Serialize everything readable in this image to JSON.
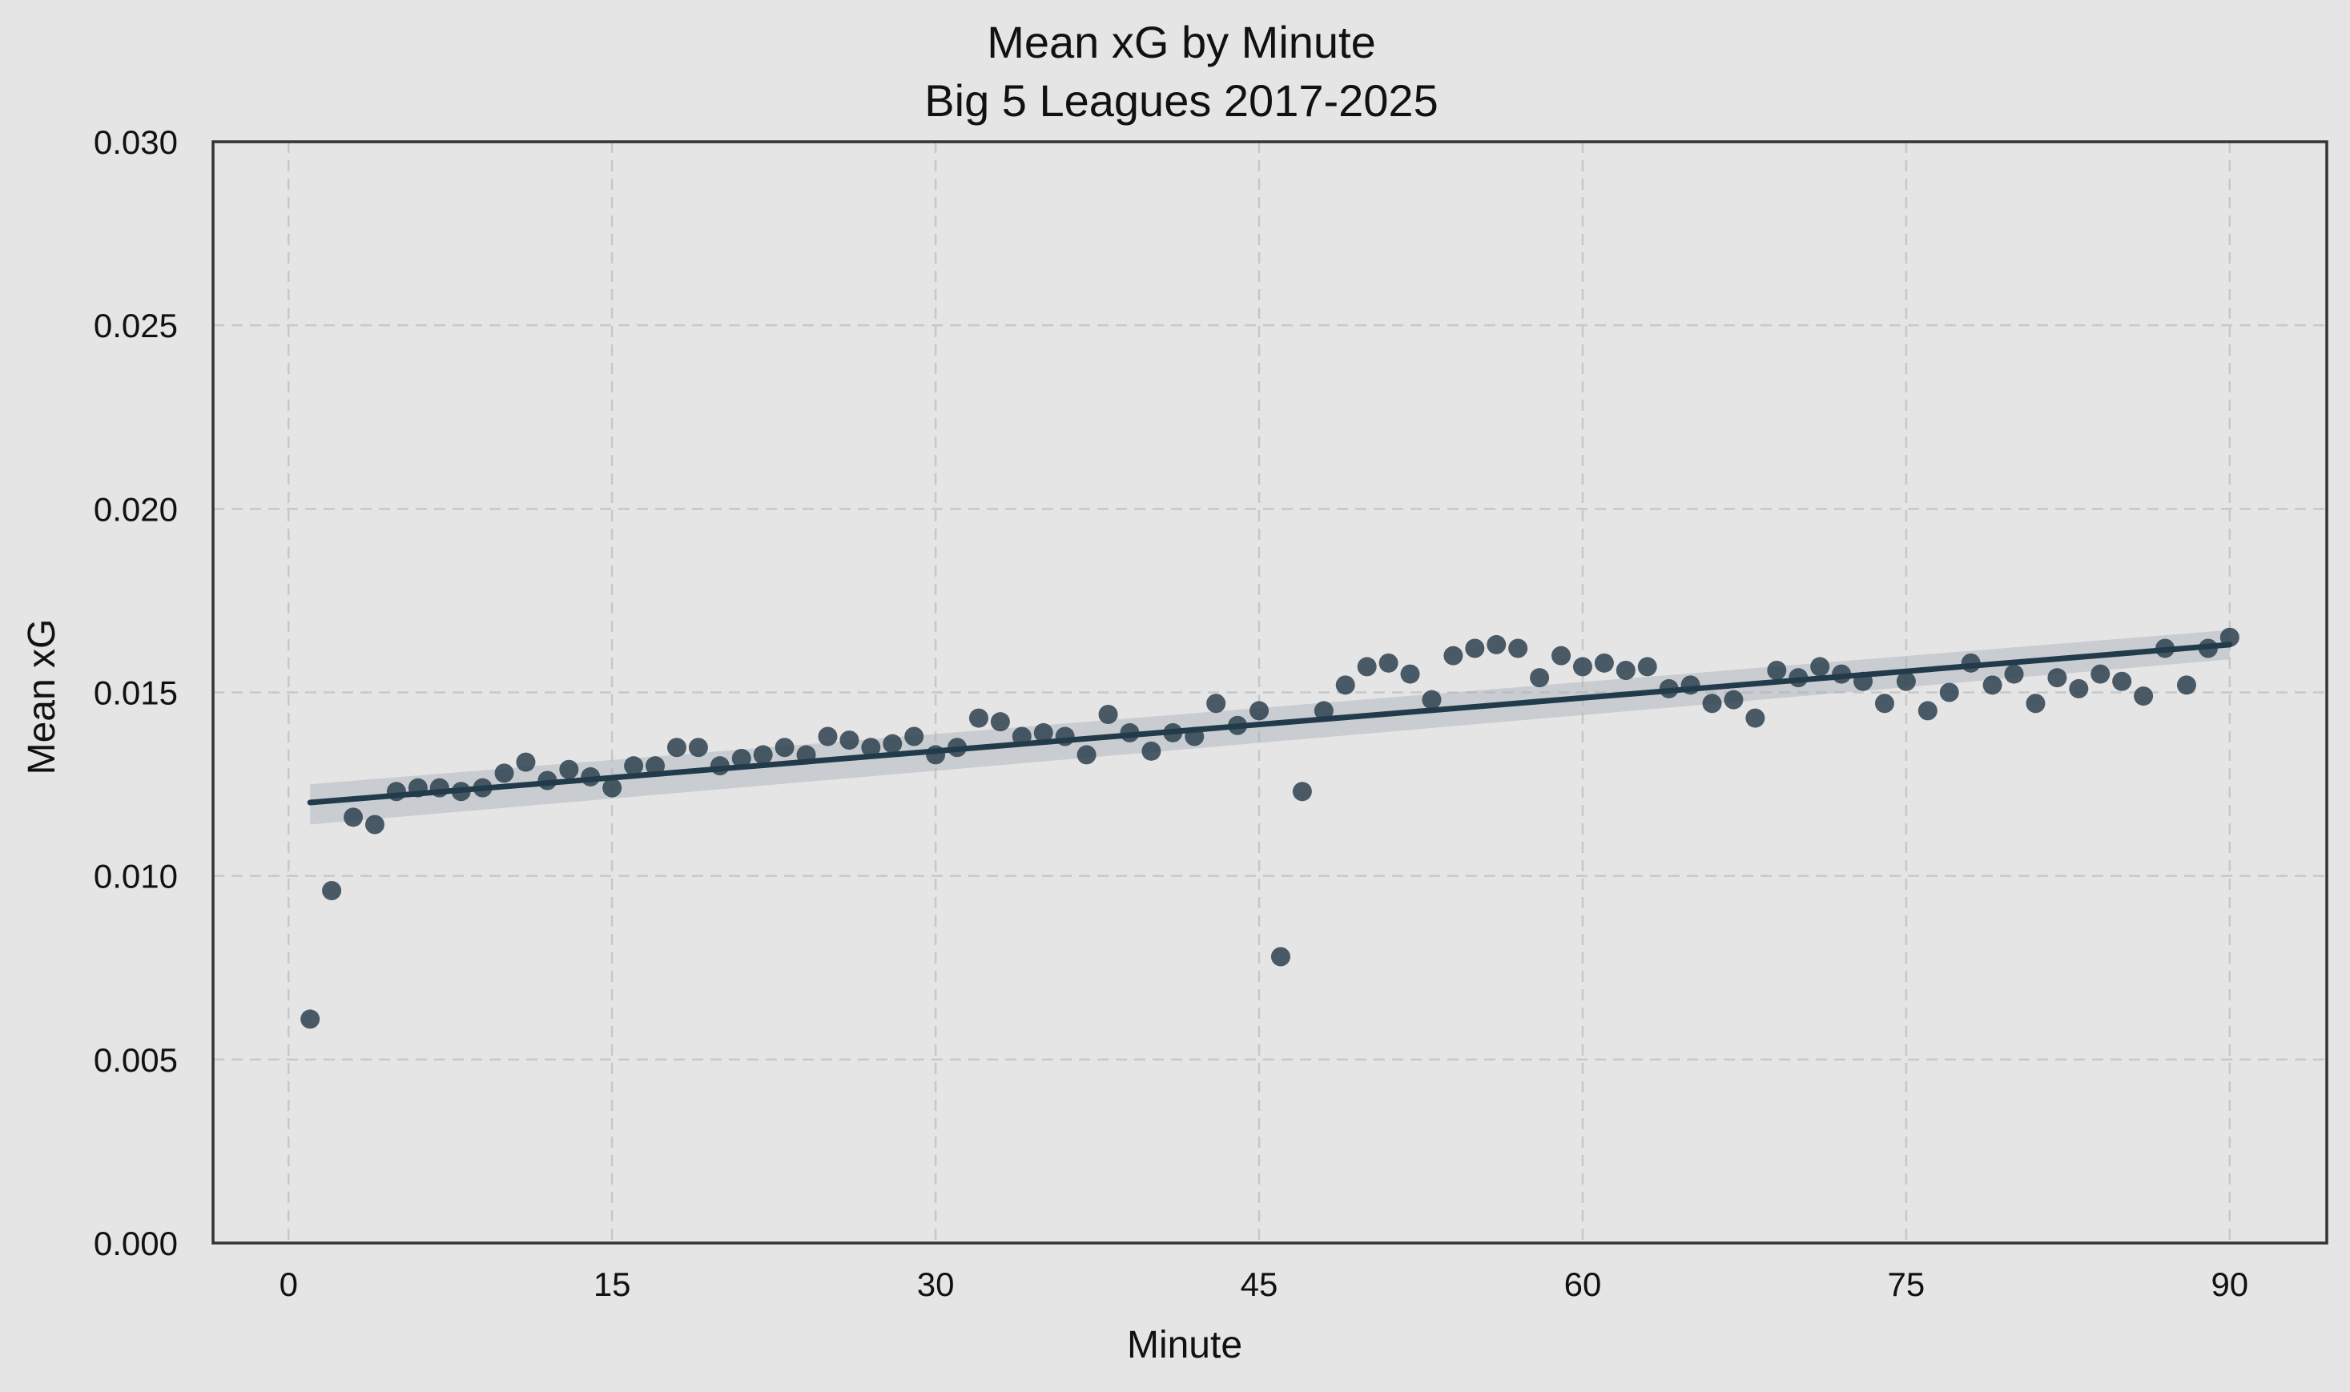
{
  "chart_data": {
    "type": "scatter",
    "title": "Mean xG by Minute",
    "subtitle": "Big 5 Leagues 2017-2025",
    "xlabel": "Minute",
    "ylabel": "Mean xG",
    "xlim": [
      -3.5,
      94.5
    ],
    "ylim": [
      0,
      0.03
    ],
    "xticks": [
      0,
      15,
      30,
      45,
      60,
      75,
      90
    ],
    "yticks": [
      0.0,
      0.005,
      0.01,
      0.015,
      0.02,
      0.025,
      0.03
    ],
    "grid": true,
    "colors": {
      "point": "#2e4150",
      "line": "#223b4b",
      "band": "#a6b0b8",
      "background": "#e5e5e5",
      "grid": "#c8c8c8"
    },
    "series": [
      {
        "name": "Mean xG",
        "x": [
          1,
          2,
          3,
          4,
          5,
          6,
          7,
          8,
          9,
          10,
          11,
          12,
          13,
          14,
          15,
          16,
          17,
          18,
          19,
          20,
          21,
          22,
          23,
          24,
          25,
          26,
          27,
          28,
          29,
          30,
          31,
          32,
          33,
          34,
          35,
          36,
          37,
          38,
          39,
          40,
          41,
          42,
          43,
          44,
          45,
          46,
          47,
          48,
          49,
          50,
          51,
          52,
          53,
          54,
          55,
          56,
          57,
          58,
          59,
          60,
          61,
          62,
          63,
          64,
          65,
          66,
          67,
          68,
          69,
          70,
          71,
          72,
          73,
          74,
          75,
          76,
          77,
          78,
          79,
          80,
          81,
          82,
          83,
          84,
          85,
          86,
          87,
          88,
          89,
          90
        ],
        "y": [
          0.0061,
          0.0096,
          0.0116,
          0.0114,
          0.0123,
          0.0124,
          0.0124,
          0.0123,
          0.0124,
          0.0128,
          0.0131,
          0.0126,
          0.0129,
          0.0127,
          0.0124,
          0.013,
          0.013,
          0.0135,
          0.0135,
          0.013,
          0.0132,
          0.0133,
          0.0135,
          0.0133,
          0.0138,
          0.0137,
          0.0135,
          0.0136,
          0.0138,
          0.0133,
          0.0135,
          0.0143,
          0.0142,
          0.0138,
          0.0139,
          0.0138,
          0.0133,
          0.0144,
          0.0139,
          0.0134,
          0.0139,
          0.0138,
          0.0147,
          0.0141,
          0.0145,
          0.0078,
          0.0123,
          0.0145,
          0.0152,
          0.0157,
          0.0158,
          0.0155,
          0.0148,
          0.016,
          0.0162,
          0.0163,
          0.0162,
          0.0154,
          0.016,
          0.0157,
          0.0158,
          0.0156,
          0.0157,
          0.0151,
          0.0152,
          0.0147,
          0.0148,
          0.0143,
          0.0156,
          0.0154,
          0.0157,
          0.0155,
          0.0153,
          0.0147,
          0.0153,
          0.0145,
          0.015,
          0.0158,
          0.0152,
          0.0155,
          0.0147,
          0.0154,
          0.0151,
          0.0155,
          0.0153,
          0.0149,
          0.0162,
          0.0152,
          0.0162,
          0.0165
        ]
      },
      {
        "name": "Linear fit",
        "type": "line",
        "x": [
          1,
          90
        ],
        "y": [
          0.012,
          0.0163
        ],
        "ci_lower": [
          0.0114,
          0.0159
        ],
        "ci_upper": [
          0.0125,
          0.0167
        ]
      }
    ]
  }
}
